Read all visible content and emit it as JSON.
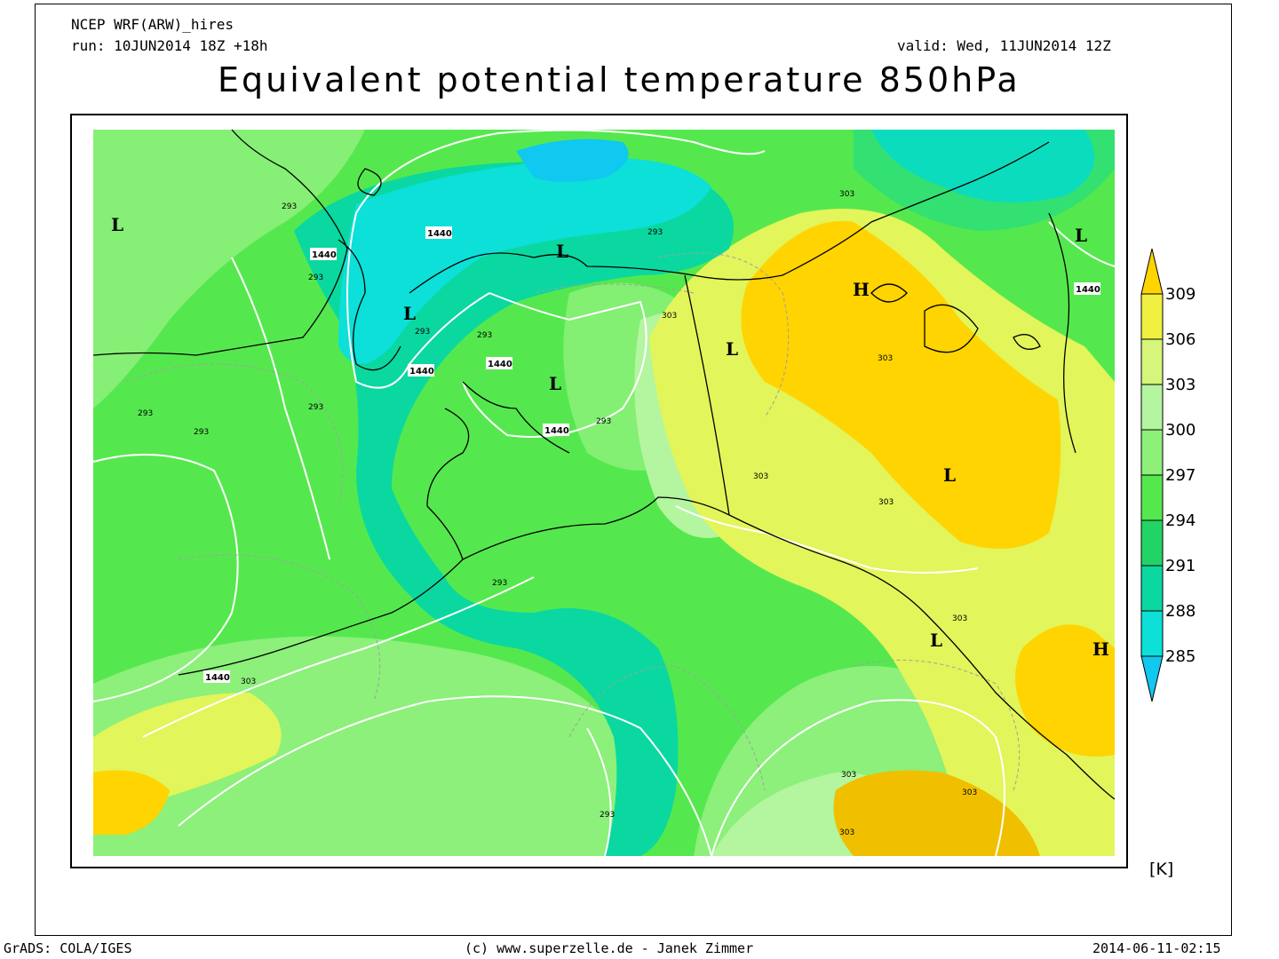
{
  "header": {
    "model": "NCEP WRF(ARW)_hires",
    "run": "run: 10JUN2014 18Z +18h",
    "valid": "valid: Wed, 11JUN2014 12Z",
    "title": "Equivalent potential temperature 850hPa"
  },
  "colorbar": {
    "labels": [
      "309",
      "306",
      "303",
      "300",
      "297",
      "294",
      "291",
      "288",
      "285"
    ],
    "colors": [
      "#ffd400",
      "#f0f040",
      "#d6f57a",
      "#b4f5a0",
      "#8cf07a",
      "#55e84e",
      "#22d465",
      "#0ad8a0",
      "#0ce0d8",
      "#10c8f0"
    ],
    "unit": "[K]"
  },
  "map": {
    "pressure_systems": [
      {
        "label": "L"
      },
      {
        "label": "L"
      },
      {
        "label": "L"
      },
      {
        "label": "L"
      },
      {
        "label": "L"
      },
      {
        "label": "H"
      },
      {
        "label": "L"
      },
      {
        "label": "L"
      },
      {
        "label": "L"
      },
      {
        "label": "H"
      }
    ],
    "theta_labels": [
      "293",
      "293",
      "293",
      "293",
      "293",
      "293",
      "293",
      "293",
      "293",
      "293",
      "293",
      "303",
      "303",
      "303",
      "303",
      "303",
      "303",
      "303",
      "303",
      "303",
      "303"
    ],
    "height_labels": [
      "1440",
      "1440",
      "1440",
      "1440",
      "1440",
      "1440",
      "1440"
    ]
  },
  "footer": {
    "left": "GrADS: COLA/IGES",
    "center": "(c) www.superzelle.de - Janek Zimmer",
    "right": "2014-06-11-02:15"
  }
}
